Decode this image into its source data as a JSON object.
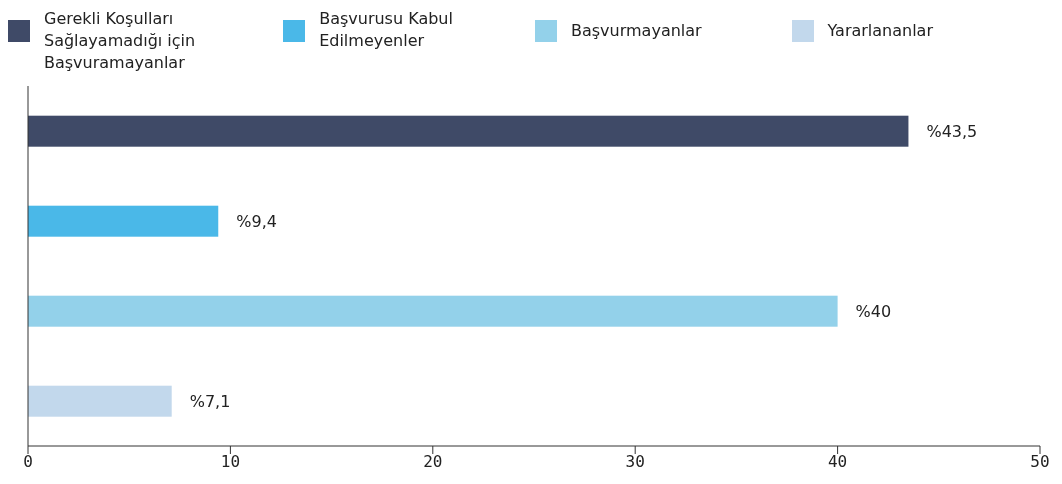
{
  "chart_data": {
    "type": "bar",
    "orientation": "horizontal",
    "categories": [
      null,
      null,
      null,
      null
    ],
    "series": [
      {
        "name": "Gerekli Koşulları Sağlayamadığı için Başvuramayanlar",
        "color": "#3f4a67",
        "values": [
          43.5,
          null,
          null,
          null
        ],
        "value_labels": [
          "%43,5",
          null,
          null,
          null
        ]
      },
      {
        "name": "Başvurusu Kabul Edilmeyenler",
        "color": "#4ab8e8",
        "values": [
          null,
          9.4,
          null,
          null
        ],
        "value_labels": [
          null,
          "%9,4",
          null,
          null
        ]
      },
      {
        "name": "Başvurmayanlar",
        "color": "#93d1ea",
        "values": [
          null,
          null,
          40,
          null
        ],
        "value_labels": [
          null,
          null,
          "%40",
          null
        ]
      },
      {
        "name": "Yararlananlar",
        "color": "#c2d8ec",
        "values": [
          null,
          null,
          null,
          7.1
        ],
        "value_labels": [
          null,
          null,
          null,
          "%7,1"
        ]
      }
    ],
    "xlim": [
      0,
      50
    ],
    "xticks": [
      0,
      10,
      20,
      30,
      40,
      50
    ],
    "grid": false,
    "legend": "top"
  }
}
